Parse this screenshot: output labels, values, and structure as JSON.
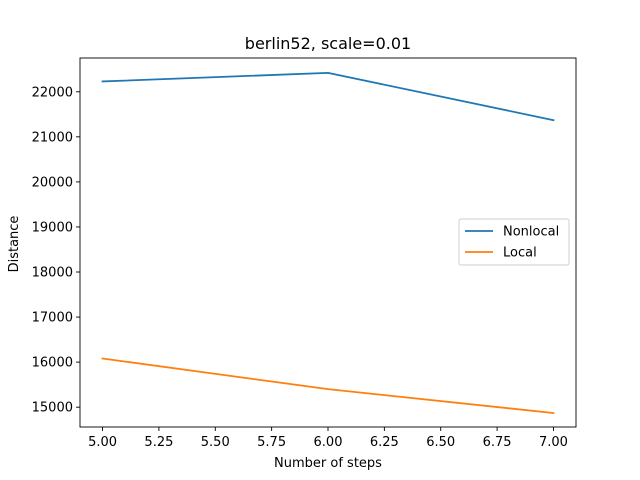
{
  "chart_data": {
    "type": "line",
    "title": "berlin52, scale=0.01",
    "xlabel": "Number of steps",
    "ylabel": "Distance",
    "x": [
      5,
      6,
      7
    ],
    "xlim": [
      4.9,
      7.1
    ],
    "ylim": [
      14560,
      22750
    ],
    "xticks": [
      5.0,
      5.25,
      5.5,
      5.75,
      6.0,
      6.25,
      6.5,
      6.75,
      7.0
    ],
    "xtick_labels": [
      "5.00",
      "5.25",
      "5.50",
      "5.75",
      "6.00",
      "6.25",
      "6.50",
      "6.75",
      "7.00"
    ],
    "yticks": [
      15000,
      16000,
      17000,
      18000,
      19000,
      20000,
      21000,
      22000
    ],
    "ytick_labels": [
      "15000",
      "16000",
      "17000",
      "18000",
      "19000",
      "20000",
      "21000",
      "22000"
    ],
    "grid": false,
    "legend_position": "center-right",
    "series": [
      {
        "name": "Nonlocal",
        "color": "#1f77b4",
        "values": [
          22230,
          22420,
          21370
        ]
      },
      {
        "name": "Local",
        "color": "#ff7f0e",
        "values": [
          16080,
          15400,
          14870
        ]
      }
    ]
  }
}
